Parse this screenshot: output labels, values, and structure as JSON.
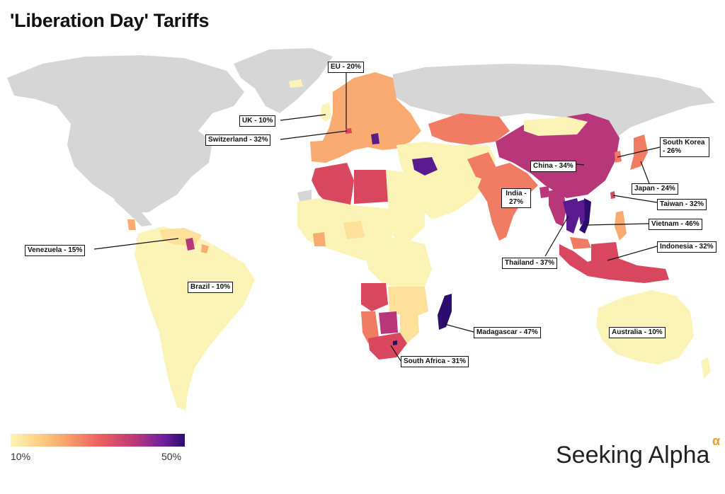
{
  "title": "'Liberation Day' Tariffs",
  "legend": {
    "min_label": "10%",
    "max_label": "50%",
    "color_low": "#fcf4b7",
    "color_high": "#2c0c6e"
  },
  "brand": {
    "name": "Seeking Alpha",
    "mark": "α",
    "mark_color": "#f39a1e"
  },
  "annotations": {
    "eu": "EU - 20%",
    "uk": "UK - 10%",
    "switzerland": "Switzerland - 32%",
    "south_korea": "South Korea - 26%",
    "china": "China - 34%",
    "japan": "Japan - 24%",
    "india": "India - 27%",
    "taiwan": "Taiwan - 32%",
    "vietnam": "Vietnam - 46%",
    "venezuela": "Venezuela - 15%",
    "indonesia": "Indonesia - 32%",
    "thailand": "Thailand - 37%",
    "brazil": "Brazil - 10%",
    "madagascar": "Madagascar - 47%",
    "australia": "Australia - 10%",
    "south_africa": "South Africa - 31%"
  },
  "colors": {
    "ocean": "#ffffff",
    "no_data": "#d6d6d6",
    "t10": "#fcf4b7",
    "t15": "#fde09a",
    "t20": "#f9ab72",
    "t25": "#f07c63",
    "t30": "#d9475f",
    "t35": "#b8377b",
    "t45": "#5a1a8f"
  }
}
